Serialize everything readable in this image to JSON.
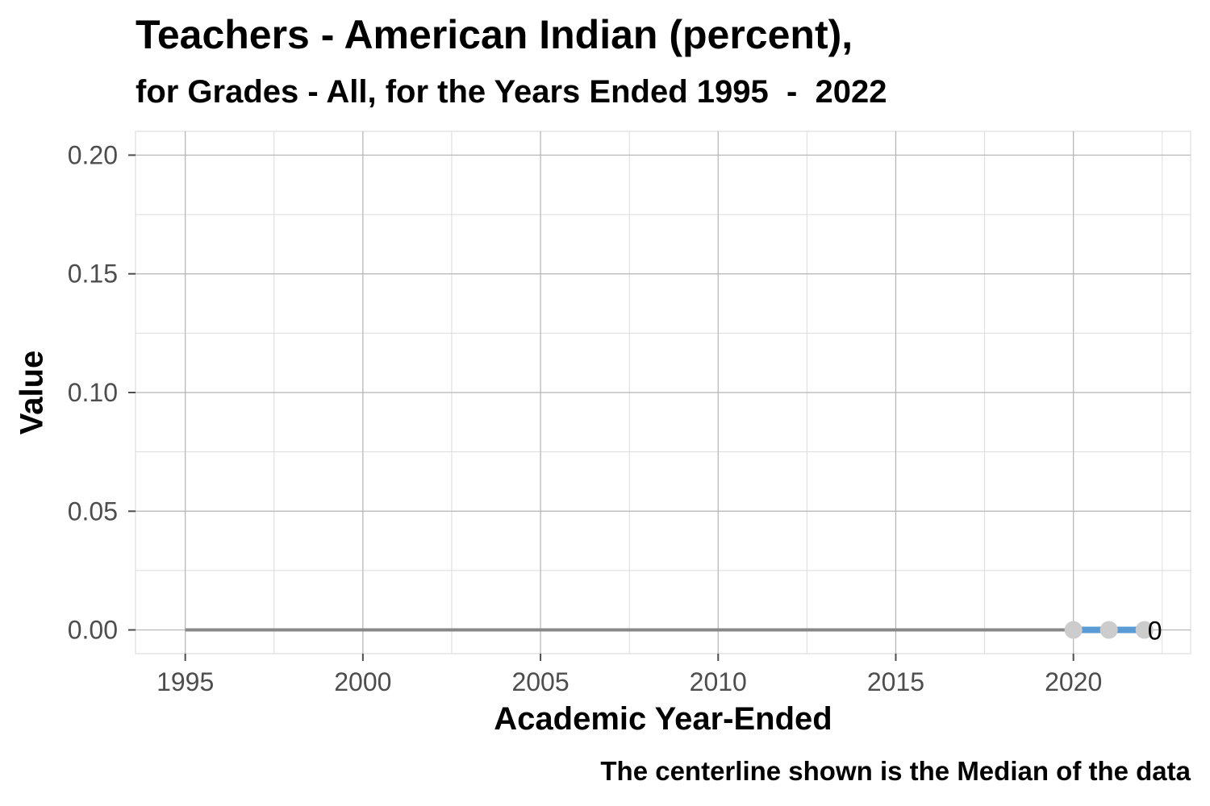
{
  "chart_data": {
    "type": "line",
    "title": "Teachers - American Indian (percent),",
    "subtitle": "for Grades - All, for the Years Ended 1995  -  2022",
    "xlabel": "Academic Year-Ended",
    "ylabel": "Value",
    "caption": "The centerline shown is the Median of the data",
    "xlim": [
      1993.6,
      2023.3
    ],
    "ylim": [
      -0.01,
      0.21
    ],
    "x_ticks": [
      1995,
      2000,
      2005,
      2010,
      2015,
      2020
    ],
    "y_ticks": [
      0.0,
      0.05,
      0.1,
      0.15,
      0.2
    ],
    "x_tick_labels": [
      "1995",
      "2000",
      "2005",
      "2010",
      "2015",
      "2020"
    ],
    "y_tick_labels": [
      "0.00",
      "0.05",
      "0.10",
      "0.15",
      "0.20"
    ],
    "grid": true,
    "centerline": {
      "label": "Median",
      "value": 0.0,
      "x_range": [
        1995,
        2020
      ],
      "color": "#888888"
    },
    "series": [
      {
        "x": [
          2020,
          2021,
          2022
        ],
        "values": [
          0,
          0,
          0
        ],
        "line_color": "#5b9bd5",
        "point_color": "#cccccc"
      }
    ],
    "annotations": [
      {
        "x": 2022,
        "y": 0,
        "text": "0"
      }
    ]
  }
}
